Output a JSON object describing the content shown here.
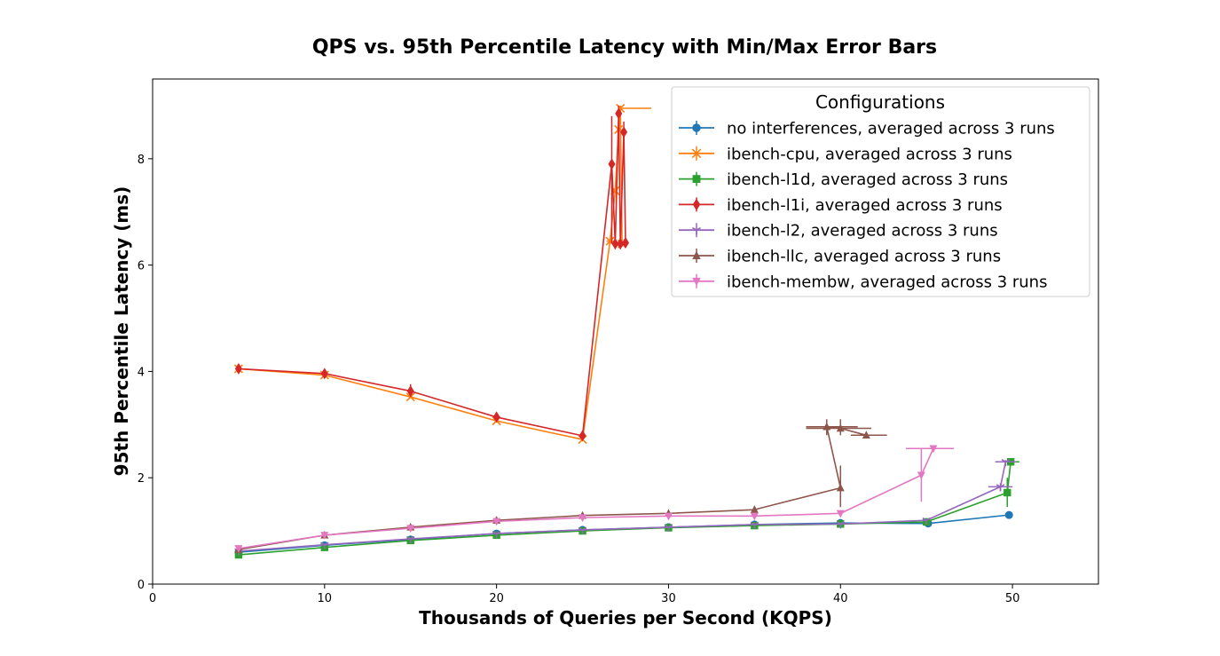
{
  "chart_data": {
    "type": "line",
    "title": "QPS vs. 95th Percentile Latency with Min/Max Error Bars",
    "xlabel": "Thousands of Queries per Second (KQPS)",
    "ylabel": "95th Percentile Latency (ms)",
    "xlim": [
      0,
      55
    ],
    "ylim": [
      0,
      9.5
    ],
    "xticks": [
      0,
      10,
      20,
      30,
      40,
      50
    ],
    "yticks": [
      0,
      2,
      4,
      6,
      8
    ],
    "grid": false,
    "legend": {
      "title": "Configurations",
      "placement": "top-right"
    },
    "series": [
      {
        "name": "no interferences, averaged across 3 runs",
        "color": "#1f77b4",
        "marker": "circle",
        "x": [
          5,
          10,
          15,
          20,
          25,
          30,
          35,
          40,
          45.1,
          49.8
        ],
        "y": [
          0.6,
          0.73,
          0.84,
          0.95,
          1.02,
          1.07,
          1.12,
          1.15,
          1.14,
          1.3
        ],
        "yerr": [
          [
            0.6,
            0.6
          ],
          [
            0.72,
            0.74
          ],
          [
            0.83,
            0.85
          ],
          [
            0.94,
            0.96
          ],
          [
            1.01,
            1.03
          ],
          [
            1.06,
            1.08
          ],
          [
            1.11,
            1.13
          ],
          [
            1.14,
            1.16
          ],
          [
            1.13,
            1.15
          ],
          [
            1.28,
            1.32
          ]
        ]
      },
      {
        "name": "ibench-cpu, averaged across 3 runs",
        "color": "#ff7f0e",
        "marker": "x",
        "x": [
          5,
          10,
          15,
          20,
          25,
          26.6,
          26.9,
          27.1,
          27.2,
          27.3
        ],
        "y": [
          4.05,
          3.93,
          3.52,
          3.07,
          2.72,
          6.45,
          7.4,
          8.55,
          8.95,
          6.4
        ],
        "xerr": [
          [
            5,
            5
          ],
          [
            10,
            10
          ],
          [
            15,
            15
          ],
          [
            20,
            20
          ],
          [
            25,
            25
          ],
          [
            26.4,
            26.8
          ],
          [
            26.8,
            27.0
          ],
          [
            27.0,
            27.2
          ],
          [
            27.1,
            29.0
          ],
          [
            27.2,
            27.4
          ]
        ],
        "yerr": [
          [
            4.0,
            4.1
          ],
          [
            3.9,
            3.96
          ],
          [
            3.5,
            3.55
          ],
          [
            3.05,
            3.1
          ],
          [
            2.7,
            2.74
          ],
          [
            6.4,
            6.5
          ],
          [
            7.35,
            7.45
          ],
          [
            8.5,
            8.6
          ],
          [
            8.9,
            9.0
          ],
          [
            6.35,
            6.45
          ]
        ]
      },
      {
        "name": "ibench-l1d, averaged across 3 runs",
        "color": "#2ca02c",
        "marker": "square",
        "x": [
          5,
          10,
          15,
          20,
          25,
          30,
          35,
          40,
          45,
          49.7,
          49.9
        ],
        "y": [
          0.55,
          0.69,
          0.82,
          0.92,
          1.0,
          1.06,
          1.1,
          1.13,
          1.17,
          1.72,
          2.3
        ],
        "xerr": [
          [
            5,
            5
          ],
          [
            10,
            10
          ],
          [
            15,
            15
          ],
          [
            20,
            20
          ],
          [
            25,
            25
          ],
          [
            30,
            30
          ],
          [
            35,
            35
          ],
          [
            40,
            40
          ],
          [
            45,
            45
          ],
          [
            49.5,
            49.9
          ],
          [
            49.6,
            50.4
          ]
        ],
        "yerr": [
          [
            0.54,
            0.56
          ],
          [
            0.68,
            0.7
          ],
          [
            0.81,
            0.83
          ],
          [
            0.91,
            0.93
          ],
          [
            0.99,
            1.01
          ],
          [
            1.05,
            1.07
          ],
          [
            1.09,
            1.11
          ],
          [
            1.12,
            1.14
          ],
          [
            1.16,
            1.18
          ],
          [
            1.45,
            2.0
          ],
          [
            2.27,
            2.33
          ]
        ]
      },
      {
        "name": "ibench-l1i, averaged across 3 runs",
        "color": "#d62728",
        "marker": "diamond",
        "x": [
          5,
          10,
          15,
          20,
          25,
          26.7,
          26.9,
          27.1,
          27.2,
          27.4,
          27.5
        ],
        "y": [
          4.05,
          3.96,
          3.63,
          3.14,
          2.79,
          7.9,
          6.4,
          8.85,
          6.4,
          8.5,
          6.42
        ],
        "yerr": [
          [
            3.97,
            4.12
          ],
          [
            3.9,
            4.02
          ],
          [
            3.52,
            3.76
          ],
          [
            3.07,
            3.2
          ],
          [
            2.73,
            2.85
          ],
          [
            6.4,
            8.8
          ],
          [
            6.3,
            6.5
          ],
          [
            8.5,
            9.0
          ],
          [
            6.3,
            6.5
          ],
          [
            8.2,
            8.7
          ],
          [
            6.35,
            6.5
          ]
        ]
      },
      {
        "name": "ibench-l2, averaged across 3 runs",
        "color": "#9467bd",
        "marker": "tri_down",
        "x": [
          5,
          10,
          15,
          20,
          25,
          30,
          35,
          40,
          45,
          49.3,
          49.6
        ],
        "y": [
          0.62,
          0.74,
          0.85,
          0.95,
          1.02,
          1.07,
          1.12,
          1.13,
          1.2,
          1.83,
          2.3
        ],
        "xerr": [
          [
            5,
            5
          ],
          [
            10,
            10
          ],
          [
            15,
            15
          ],
          [
            20,
            20
          ],
          [
            25,
            25
          ],
          [
            30,
            30
          ],
          [
            35,
            35
          ],
          [
            40,
            40
          ],
          [
            45,
            45
          ],
          [
            48.6,
            50.0
          ],
          [
            49.0,
            50.2
          ]
        ],
        "yerr": [
          [
            0.61,
            0.63
          ],
          [
            0.73,
            0.75
          ],
          [
            0.84,
            0.86
          ],
          [
            0.94,
            0.96
          ],
          [
            1.01,
            1.03
          ],
          [
            1.06,
            1.08
          ],
          [
            1.11,
            1.13
          ],
          [
            1.12,
            1.14
          ],
          [
            1.19,
            1.21
          ],
          [
            1.75,
            1.9
          ],
          [
            2.25,
            2.33
          ]
        ]
      },
      {
        "name": "ibench-llc, averaged across 3 runs",
        "color": "#8c564b",
        "marker": "triangle_up",
        "x": [
          5,
          10,
          15,
          20,
          25,
          30,
          35,
          40,
          39.2,
          40,
          41.5
        ],
        "y": [
          0.65,
          0.92,
          1.07,
          1.2,
          1.29,
          1.33,
          1.4,
          1.81,
          2.96,
          2.93,
          2.8
        ],
        "xerr": [
          [
            5,
            5
          ],
          [
            10,
            10
          ],
          [
            15,
            15
          ],
          [
            20,
            20
          ],
          [
            25,
            25
          ],
          [
            30,
            30
          ],
          [
            35,
            35
          ],
          [
            40,
            40
          ],
          [
            38.0,
            41.0
          ],
          [
            38.0,
            41.8
          ],
          [
            40.6,
            42.7
          ]
        ],
        "yerr": [
          [
            0.64,
            0.66
          ],
          [
            0.91,
            0.93
          ],
          [
            1.06,
            1.08
          ],
          [
            1.19,
            1.21
          ],
          [
            1.28,
            1.3
          ],
          [
            1.32,
            1.34
          ],
          [
            1.39,
            1.41
          ],
          [
            1.45,
            2.23
          ],
          [
            2.8,
            3.1
          ],
          [
            2.8,
            3.1
          ],
          [
            2.77,
            2.83
          ]
        ]
      },
      {
        "name": "ibench-membw, averaged across 3 runs",
        "color": "#e377c2",
        "marker": "triangle_down",
        "x": [
          5,
          10,
          15,
          20,
          25,
          30,
          35,
          40,
          44.7,
          45.4
        ],
        "y": [
          0.67,
          0.92,
          1.05,
          1.18,
          1.25,
          1.28,
          1.28,
          1.33,
          2.05,
          2.55
        ],
        "xerr": [
          [
            5,
            5
          ],
          [
            10,
            10
          ],
          [
            15,
            15
          ],
          [
            20,
            20
          ],
          [
            25,
            25
          ],
          [
            30,
            30
          ],
          [
            35,
            35
          ],
          [
            40,
            40
          ],
          [
            44.6,
            44.8
          ],
          [
            43.8,
            46.6
          ]
        ],
        "yerr": [
          [
            0.66,
            0.68
          ],
          [
            0.91,
            0.93
          ],
          [
            1.04,
            1.06
          ],
          [
            1.17,
            1.19
          ],
          [
            1.24,
            1.26
          ],
          [
            1.27,
            1.29
          ],
          [
            1.27,
            1.29
          ],
          [
            1.32,
            1.34
          ],
          [
            1.55,
            2.55
          ],
          [
            2.5,
            2.6
          ]
        ]
      }
    ]
  }
}
